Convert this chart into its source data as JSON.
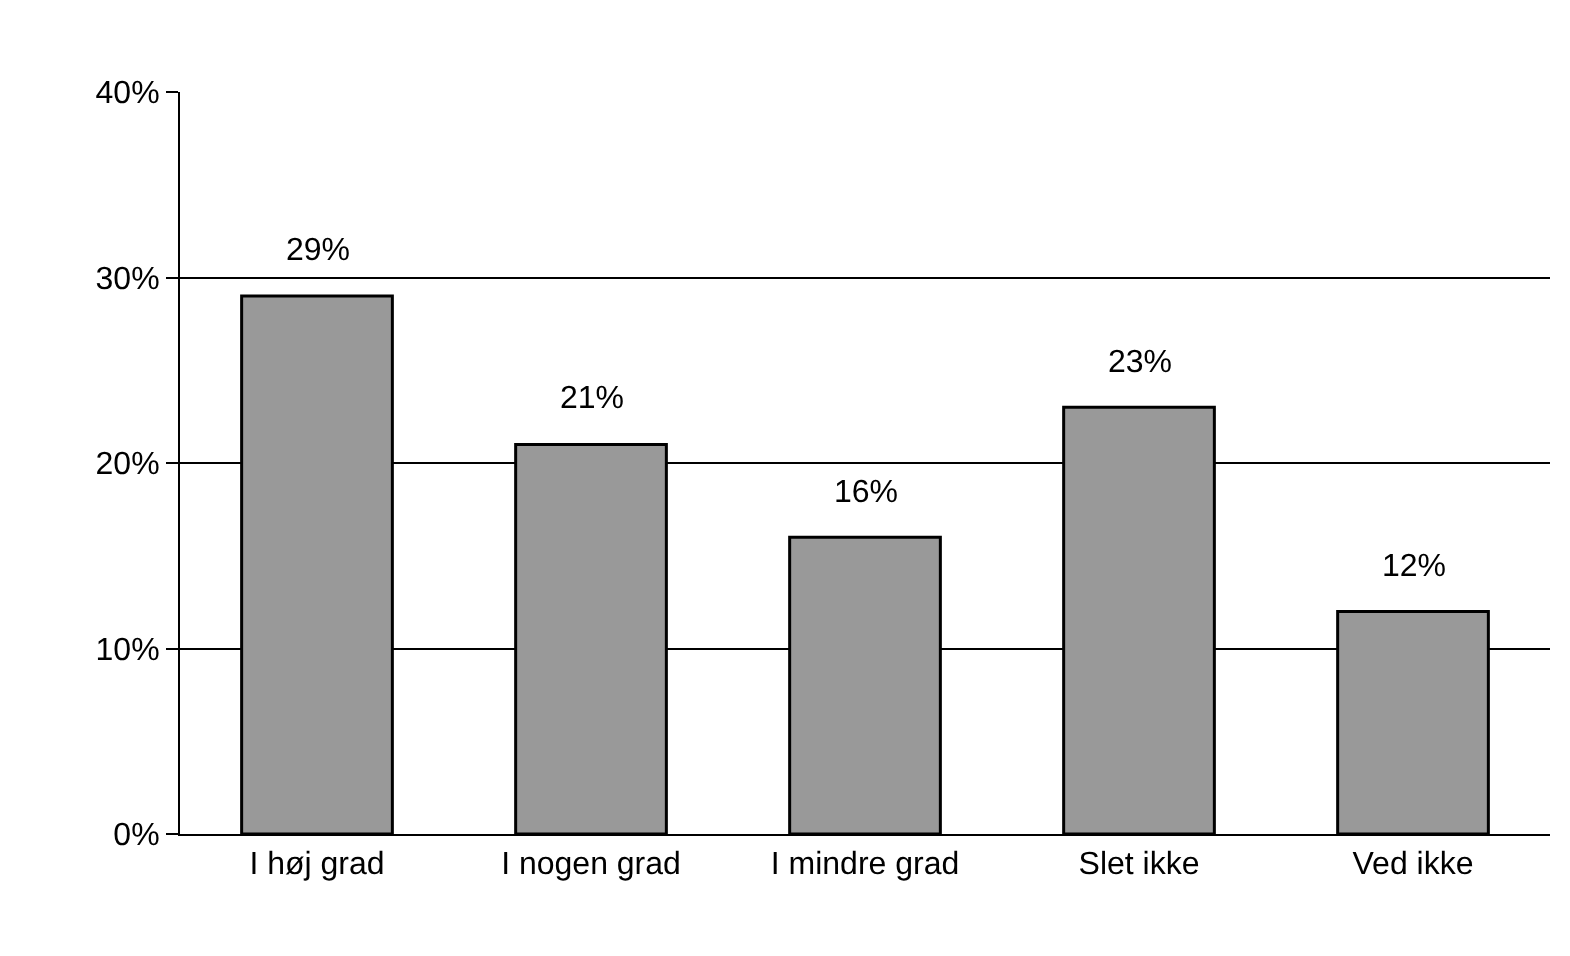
{
  "chart_data": {
    "type": "bar",
    "categories": [
      "I høj grad",
      "I nogen grad",
      "I mindre grad",
      "Slet ikke",
      "Ved ikke"
    ],
    "values": [
      29,
      21,
      16,
      23,
      12
    ],
    "value_labels": [
      "29%",
      "21%",
      "16%",
      "23%",
      "12%"
    ],
    "color": "#999999",
    "ylim": [
      0,
      40
    ],
    "yticks": [
      {
        "value": 0,
        "label": "0%"
      },
      {
        "value": 10,
        "label": "10%"
      },
      {
        "value": 20,
        "label": "20%"
      },
      {
        "value": 30,
        "label": "30%"
      },
      {
        "value": 40,
        "label": "40%"
      }
    ],
    "grid": "y",
    "legend": false
  }
}
